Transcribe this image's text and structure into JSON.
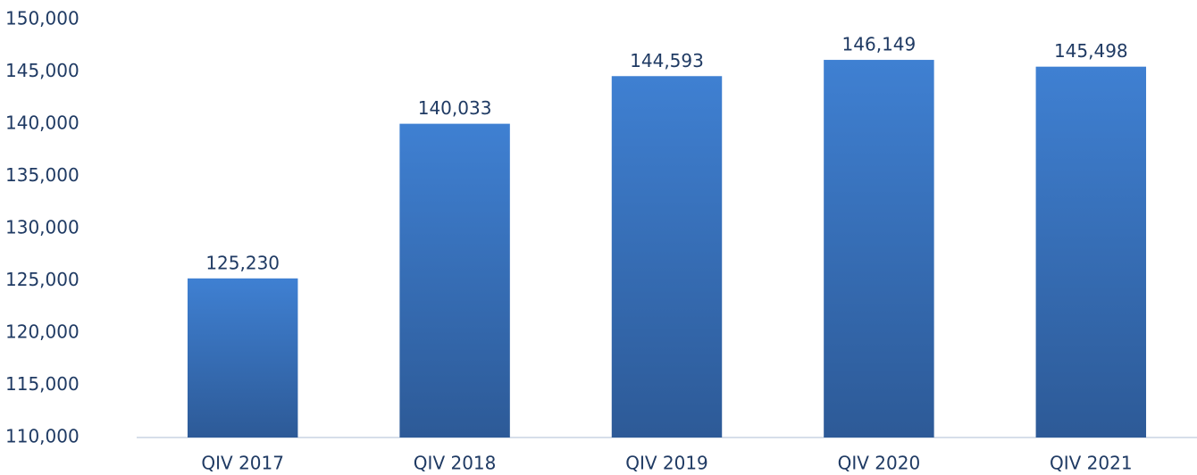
{
  "chart_data": {
    "type": "bar",
    "categories": [
      "QIV 2017",
      "QIV 2018",
      "QIV 2019",
      "QIV 2020",
      "QIV 2021"
    ],
    "values": [
      125230,
      140033,
      144593,
      146149,
      145498
    ],
    "value_labels": [
      "125,230",
      "140,033",
      "144,593",
      "146,149",
      "145,498"
    ],
    "color": "#3a74c4",
    "ylim": [
      110000,
      150000
    ],
    "yticks": [
      {
        "value": 110000,
        "label": "110,000"
      },
      {
        "value": 115000,
        "label": "115,000"
      },
      {
        "value": 120000,
        "label": "120,000"
      },
      {
        "value": 125000,
        "label": "125,000"
      },
      {
        "value": 130000,
        "label": "130,000"
      },
      {
        "value": 135000,
        "label": "135,000"
      },
      {
        "value": 140000,
        "label": "140,000"
      },
      {
        "value": 145000,
        "label": "145,000"
      },
      {
        "value": 150000,
        "label": "150,000"
      }
    ],
    "grid": false
  }
}
